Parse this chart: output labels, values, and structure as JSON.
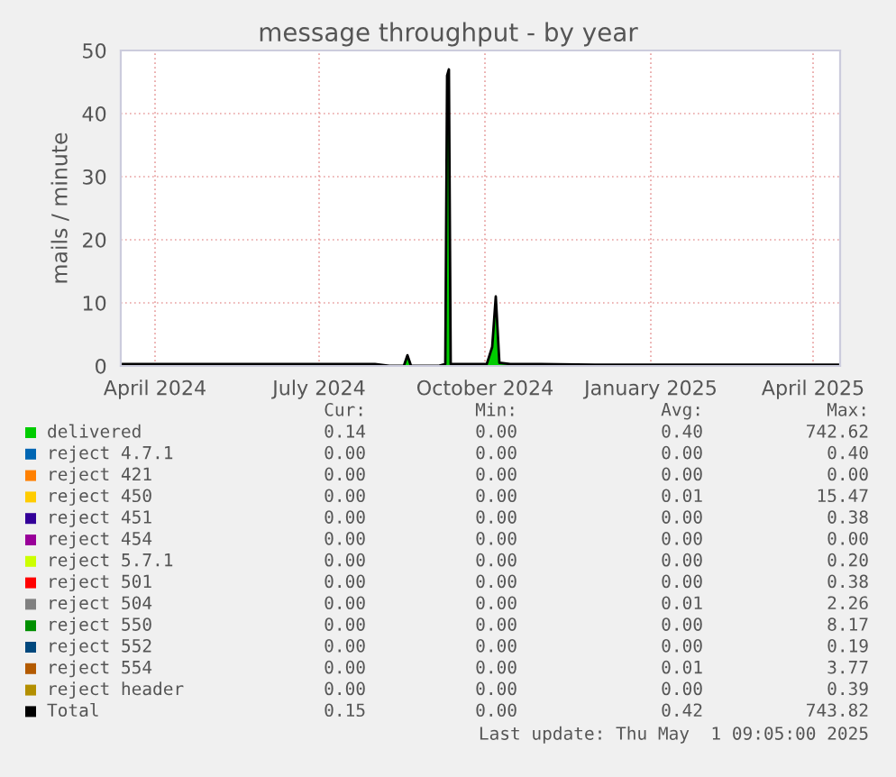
{
  "chart_data": {
    "type": "area",
    "title": "message throughput - by year",
    "ylabel": "mails / minute",
    "x": [
      "2024-03-13",
      "2024-04-01",
      "2024-05-01",
      "2024-06-01",
      "2024-07-01",
      "2024-08-01",
      "2024-08-09",
      "2024-08-17",
      "2024-08-19",
      "2024-08-21",
      "2024-09-05",
      "2024-09-09",
      "2024-09-10",
      "2024-09-11",
      "2024-09-12",
      "2024-09-20",
      "2024-10-02",
      "2024-10-05",
      "2024-10-07",
      "2024-10-09",
      "2024-10-15",
      "2024-11-01",
      "2024-12-01",
      "2025-01-01",
      "2025-02-01",
      "2025-03-01",
      "2025-04-01",
      "2025-04-16"
    ],
    "series": [
      {
        "name": "delivered",
        "color": "#00cc00",
        "values": [
          0.2,
          0.2,
          0.2,
          0.2,
          0.2,
          0.2,
          0,
          0,
          1.5,
          0,
          0,
          0.2,
          45,
          46,
          0.2,
          0.2,
          0.2,
          2.5,
          9.5,
          0.4,
          0.2,
          0.2,
          0.1,
          0.1,
          0.1,
          0.1,
          0.1,
          0.1
        ]
      },
      {
        "name": "reject 4.7.1",
        "color": "#0066b3",
        "values": [
          null,
          null,
          null,
          null,
          null,
          null,
          null,
          null,
          null,
          null,
          null,
          null,
          null,
          null,
          null,
          null,
          null,
          null,
          null,
          null,
          null,
          null,
          null,
          null,
          null,
          null,
          null,
          null
        ]
      },
      {
        "name": "reject 421",
        "color": "#ff8000",
        "values": [
          null,
          null,
          null,
          null,
          null,
          null,
          null,
          null,
          null,
          null,
          null,
          null,
          null,
          null,
          null,
          null,
          null,
          null,
          null,
          null,
          null,
          null,
          null,
          null,
          null,
          null,
          null,
          null
        ]
      },
      {
        "name": "reject 450",
        "color": "#ffcc00",
        "values": [
          null,
          null,
          null,
          null,
          null,
          null,
          null,
          null,
          null,
          null,
          null,
          null,
          null,
          null,
          null,
          null,
          null,
          null,
          null,
          null,
          null,
          null,
          null,
          null,
          null,
          null,
          null,
          null
        ]
      },
      {
        "name": "reject 451",
        "color": "#330099",
        "values": [
          null,
          null,
          null,
          null,
          null,
          null,
          null,
          null,
          null,
          null,
          null,
          null,
          null,
          null,
          null,
          null,
          null,
          null,
          null,
          null,
          null,
          null,
          null,
          null,
          null,
          null,
          null,
          null
        ]
      },
      {
        "name": "reject 454",
        "color": "#990099",
        "values": [
          null,
          null,
          null,
          null,
          null,
          null,
          null,
          null,
          null,
          null,
          null,
          null,
          null,
          null,
          null,
          null,
          null,
          null,
          null,
          null,
          null,
          null,
          null,
          null,
          null,
          null,
          null,
          null
        ]
      },
      {
        "name": "reject 5.7.1",
        "color": "#ccff00",
        "values": [
          null,
          null,
          null,
          null,
          null,
          null,
          null,
          null,
          null,
          null,
          null,
          null,
          null,
          null,
          null,
          null,
          null,
          null,
          null,
          null,
          null,
          null,
          null,
          null,
          null,
          null,
          null,
          null
        ]
      },
      {
        "name": "reject 501",
        "color": "#ff0000",
        "values": [
          null,
          null,
          null,
          null,
          null,
          null,
          null,
          null,
          null,
          null,
          null,
          null,
          null,
          null,
          null,
          null,
          null,
          null,
          null,
          null,
          null,
          null,
          null,
          null,
          null,
          null,
          null,
          null
        ]
      },
      {
        "name": "reject 504",
        "color": "#808080",
        "values": [
          null,
          null,
          null,
          null,
          null,
          null,
          null,
          null,
          null,
          null,
          null,
          null,
          null,
          null,
          null,
          null,
          null,
          null,
          null,
          null,
          null,
          null,
          null,
          null,
          null,
          null,
          null,
          null
        ]
      },
      {
        "name": "reject 550",
        "color": "#008f00",
        "values": [
          null,
          null,
          null,
          null,
          null,
          null,
          null,
          null,
          null,
          null,
          null,
          null,
          null,
          null,
          null,
          null,
          null,
          null,
          null,
          null,
          null,
          null,
          null,
          null,
          null,
          null,
          null,
          null
        ]
      },
      {
        "name": "reject 552",
        "color": "#00487d",
        "values": [
          null,
          null,
          null,
          null,
          null,
          null,
          null,
          null,
          null,
          null,
          null,
          null,
          null,
          null,
          null,
          null,
          null,
          null,
          null,
          null,
          null,
          null,
          null,
          null,
          null,
          null,
          null,
          null
        ]
      },
      {
        "name": "reject 554",
        "color": "#b35a00",
        "values": [
          null,
          null,
          null,
          null,
          null,
          null,
          null,
          null,
          null,
          null,
          null,
          null,
          null,
          null,
          null,
          null,
          null,
          null,
          null,
          null,
          null,
          null,
          null,
          null,
          null,
          null,
          null,
          null
        ]
      },
      {
        "name": "reject header",
        "color": "#b38f00",
        "values": [
          null,
          null,
          null,
          null,
          null,
          null,
          null,
          null,
          null,
          null,
          null,
          null,
          null,
          null,
          null,
          null,
          null,
          null,
          null,
          null,
          null,
          null,
          null,
          null,
          null,
          null,
          null,
          null
        ]
      },
      {
        "name": "Total",
        "color": "#000000",
        "type": "line",
        "values": [
          0.3,
          0.3,
          0.3,
          0.3,
          0.3,
          0.3,
          0,
          0,
          1.7,
          0,
          0,
          0.3,
          46,
          47,
          0.3,
          0.3,
          0.3,
          3,
          11,
          0.5,
          0.3,
          0.3,
          0.2,
          0.2,
          0.2,
          0.2,
          0.2,
          0.2
        ]
      }
    ],
    "xlim": [
      "2024-03-13",
      "2025-04-16"
    ],
    "xticks": [
      {
        "value": "2024-04-01",
        "label": "April 2024"
      },
      {
        "value": "2024-07-01",
        "label": "July 2024"
      },
      {
        "value": "2024-10-01",
        "label": "October 2024"
      },
      {
        "value": "2025-01-01",
        "label": "January 2025"
      },
      {
        "value": "2025-04-01",
        "label": "April 2025"
      }
    ],
    "ylim": [
      0,
      50
    ],
    "yticks": [
      0,
      10,
      20,
      30,
      40,
      50
    ],
    "grid": true,
    "legend": "bottom",
    "annotations": [
      "Cur:",
      "Min:",
      "Avg:",
      "Max:",
      "0.14",
      "0.00",
      "0.40",
      "742.62",
      "0.00",
      "0.00",
      "0.00",
      "0.40",
      "0.00",
      "0.00",
      "0.00",
      "0.00",
      "0.00",
      "0.00",
      "0.01",
      "15.47",
      "0.00",
      "0.00",
      "0.00",
      "0.38",
      "0.00",
      "0.00",
      "0.00",
      "0.00",
      "0.00",
      "0.00",
      "0.00",
      "0.20",
      "0.00",
      "0.00",
      "0.00",
      "0.38",
      "0.00",
      "0.00",
      "0.01",
      "2.26",
      "0.00",
      "0.00",
      "0.00",
      "8.17",
      "0.00",
      "0.00",
      "0.00",
      "0.19",
      "0.00",
      "0.00",
      "0.01",
      "3.77",
      "0.00",
      "0.00",
      "0.00",
      "0.39",
      "0.15",
      "0.00",
      "0.42",
      "743.82",
      "Last update: Thu May  1 09:05:00 2025"
    ]
  }
}
